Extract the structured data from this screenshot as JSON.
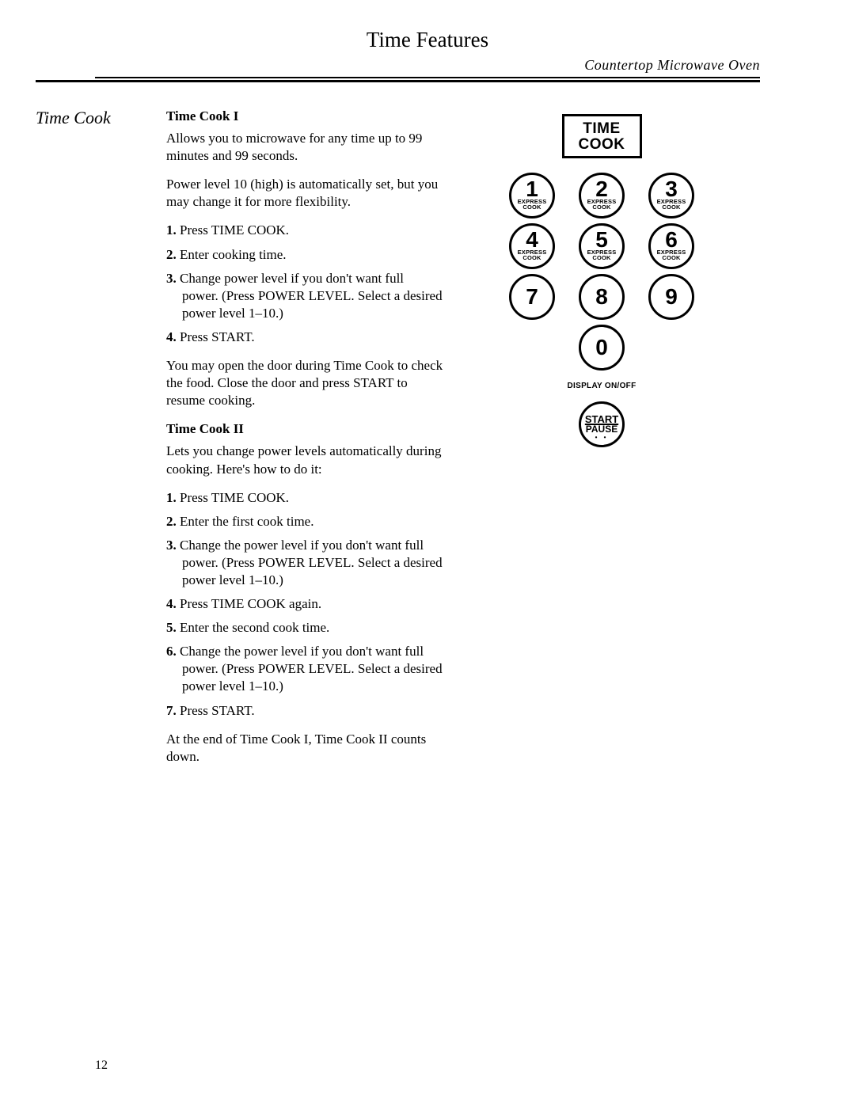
{
  "header": {
    "page_title": "Time Features",
    "subtitle": "Countertop Microwave Oven"
  },
  "side_label": "Time Cook",
  "section1": {
    "heading": "Time Cook I",
    "para1": "Allows you to microwave for any time up to 99 minutes and 99 seconds.",
    "para2": "Power level 10 (high) is automatically set, but you may change it for more flexibility.",
    "steps": [
      "Press TIME COOK.",
      "Enter cooking time.",
      "Change power level if you don't want full power. (Press POWER LEVEL. Select a desired power level 1–10.)",
      "Press START."
    ],
    "para3": "You may open the door during Time Cook to check the food. Close the door and press START to resume cooking."
  },
  "section2": {
    "heading": "Time Cook II",
    "para1": "Lets you change power levels automatically during cooking. Here's how to do it:",
    "steps": [
      "Press TIME COOK.",
      "Enter the first cook time.",
      "Change the power level if you don't want full power. (Press POWER LEVEL. Select a desired power level 1–10.)",
      "Press TIME COOK again.",
      "Enter the second cook time.",
      "Change the power level if you don't want full power. (Press POWER LEVEL. Select a desired power level 1–10.)",
      "Press START."
    ],
    "para2": "At the end of Time Cook I, Time Cook II counts down."
  },
  "keypad": {
    "time_cook_l1": "TIME",
    "time_cook_l2": "COOK",
    "buttons": [
      {
        "digit": "1",
        "sub1": "EXPRESS",
        "sub2": "COOK"
      },
      {
        "digit": "2",
        "sub1": "EXPRESS",
        "sub2": "COOK"
      },
      {
        "digit": "3",
        "sub1": "EXPRESS",
        "sub2": "COOK"
      },
      {
        "digit": "4",
        "sub1": "EXPRESS",
        "sub2": "COOK"
      },
      {
        "digit": "5",
        "sub1": "EXPRESS",
        "sub2": "COOK"
      },
      {
        "digit": "6",
        "sub1": "EXPRESS",
        "sub2": "COOK"
      },
      {
        "digit": "7"
      },
      {
        "digit": "8"
      },
      {
        "digit": "9"
      },
      {
        "digit": "0"
      }
    ],
    "display_label": "DISPLAY ON/OFF",
    "start_l1": "START",
    "start_l2": "PAUSE"
  },
  "page_number": "12"
}
